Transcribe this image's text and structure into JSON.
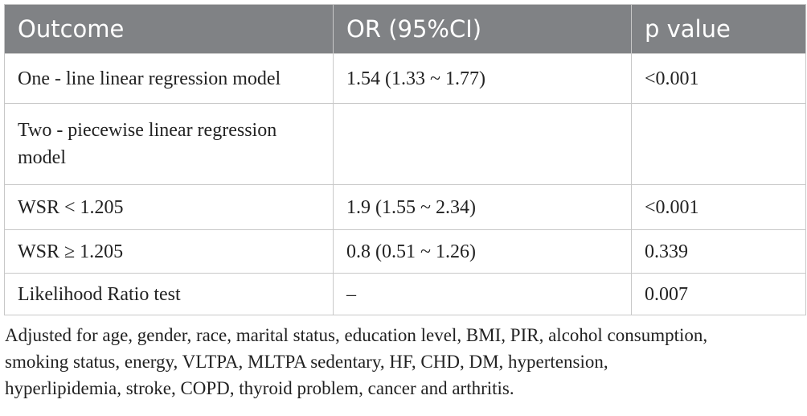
{
  "table": {
    "header": [
      "Outcome",
      "OR (95%CI)",
      "p value"
    ],
    "rows": [
      [
        "One - line linear regression model",
        "1.54 (1.33 ~ 1.77)",
        "<0.001"
      ],
      [
        "Two - piecewise linear regression model"
      ],
      [
        "WSR < 1.205",
        "1.9 (1.55 ~ 2.34)",
        "<0.001"
      ],
      [
        "WSR ≥ 1.205",
        "0.8 (0.51 ~ 1.26)",
        "0.339"
      ],
      [
        "Likelihood Ratio test",
        "–",
        "0.007"
      ]
    ],
    "footnote": "Adjusted for age, gender, race, marital status, education level, BMI, PIR, alcohol consumption, smoking status, energy, VLTPA, MLTPA sedentary, HF, CHD, DM, hypertension, hyperlipidemia, stroke, COPD, thyroid problem, cancer and arthritis."
  }
}
